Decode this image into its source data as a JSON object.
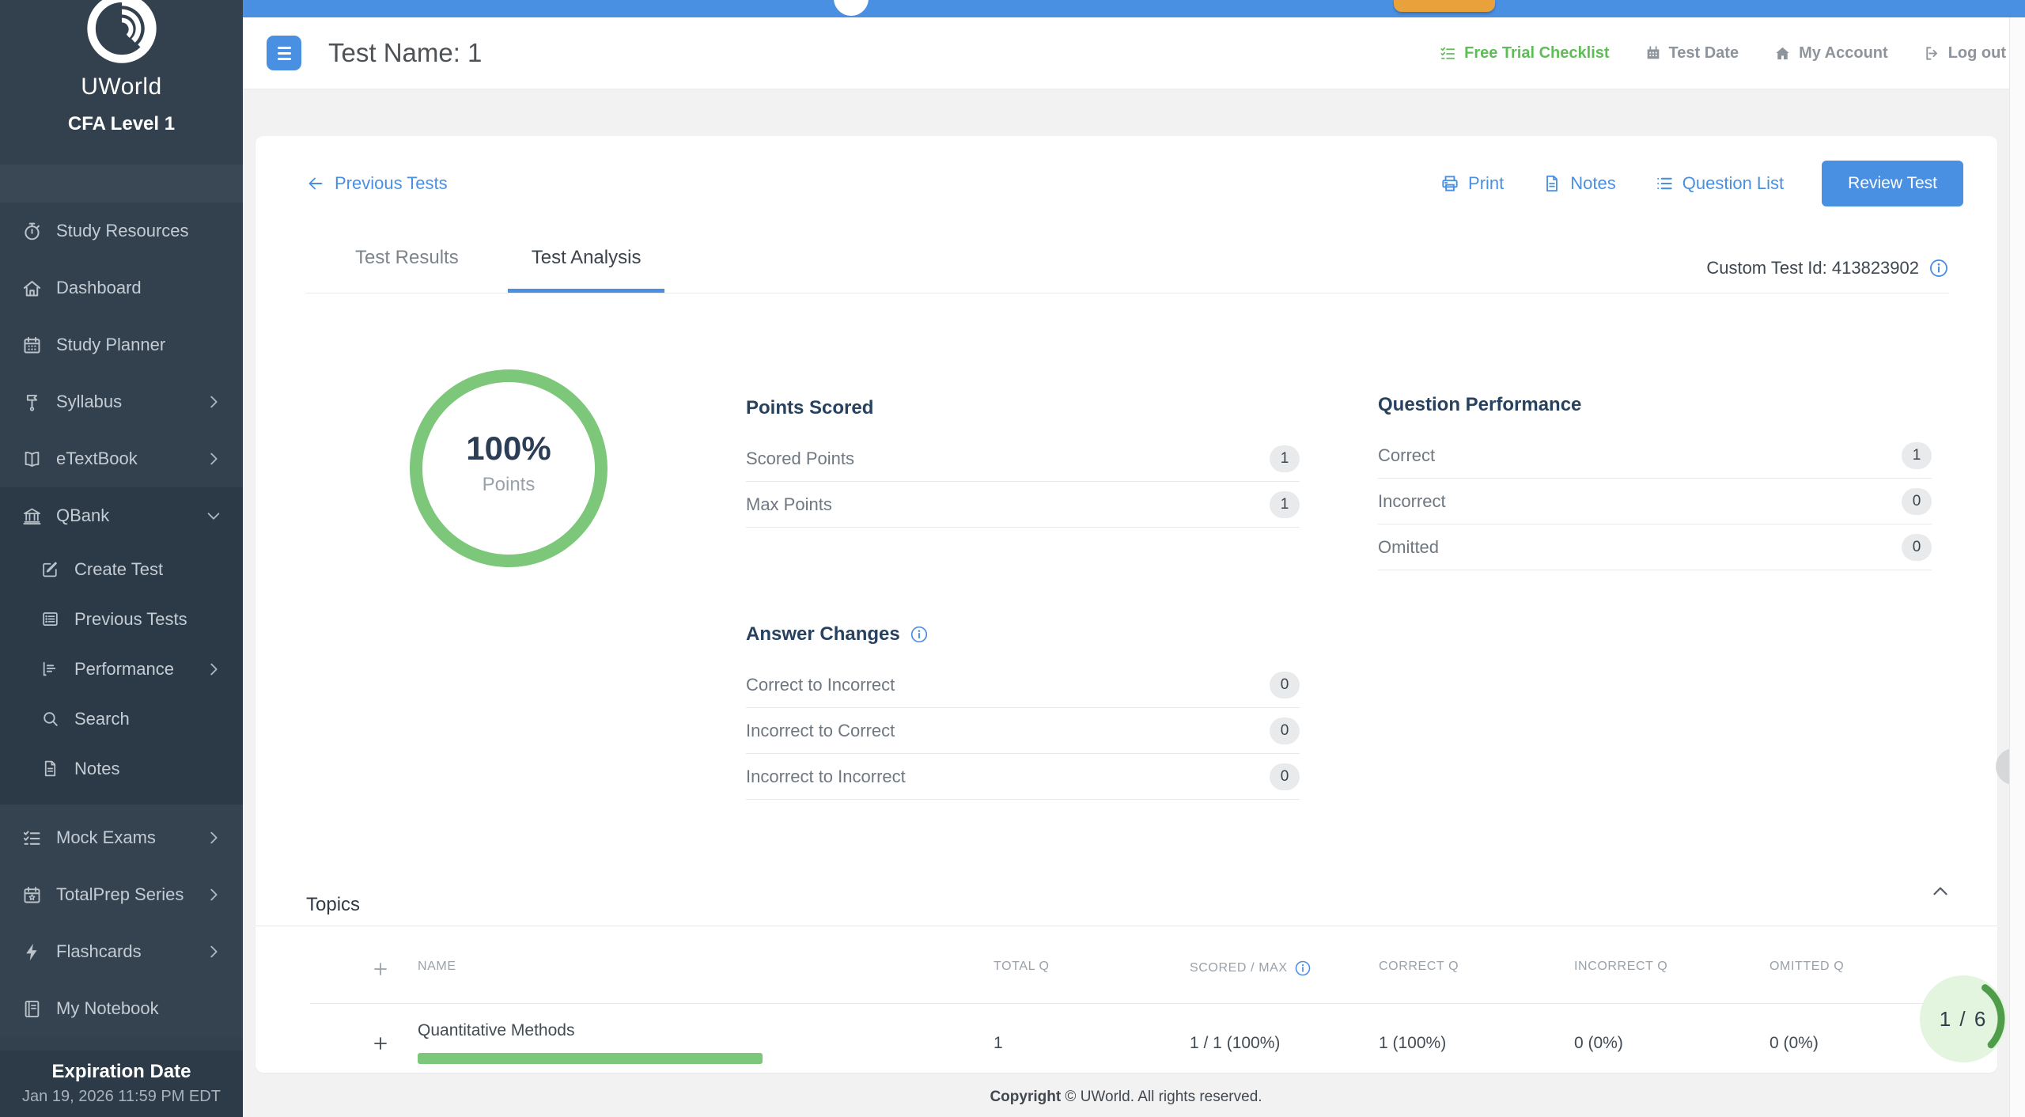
{
  "colors": {
    "accent_blue": "#4a90e2",
    "sidebar_bg": "#33404e",
    "green_ring": "#7cc779",
    "green_link": "#5fbd58",
    "orange_tab": "#e9a23b",
    "heading_navy": "#27415e",
    "page_bg": "#f2f2f3"
  },
  "icons": [
    "uworld-swirl-logo",
    "stopwatch-icon",
    "home-icon",
    "calendar-icon",
    "lectern-icon",
    "open-book-icon",
    "bank-icon",
    "edit-icon",
    "list-box-icon",
    "bar-chart-icon",
    "search-icon",
    "document-icon",
    "checklist-icon",
    "calendar-star-icon",
    "lightning-icon",
    "notebook-icon",
    "hamburger-icon",
    "logout-icon",
    "printer-icon",
    "question-list-icon",
    "info-icon",
    "arrow-left-icon",
    "chevron-right-icon",
    "chevron-down-icon",
    "chevron-up-icon",
    "plus-icon"
  ],
  "sidebar": {
    "brand": {
      "title": "UWorld",
      "subtitle": "CFA Level 1"
    },
    "nav_main": [
      {
        "label": "Study Resources"
      },
      {
        "label": "Dashboard"
      },
      {
        "label": "Study Planner"
      },
      {
        "label": "Syllabus"
      },
      {
        "label": "eTextBook"
      }
    ],
    "qbank": {
      "label": "QBank",
      "children": [
        {
          "label": "Create Test"
        },
        {
          "label": "Previous Tests"
        },
        {
          "label": "Performance"
        },
        {
          "label": "Search"
        },
        {
          "label": "Notes"
        }
      ]
    },
    "nav_secondary": [
      {
        "label": "Mock Exams"
      },
      {
        "label": "TotalPrep Series"
      },
      {
        "label": "Flashcards"
      },
      {
        "label": "My Notebook"
      }
    ],
    "expiration": {
      "title": "Expiration Date",
      "value": "Jan 19, 2026 11:59 PM EDT"
    }
  },
  "header": {
    "page_title": "Test Name: 1",
    "links": [
      {
        "label": "Free Trial Checklist"
      },
      {
        "label": "Test Date"
      },
      {
        "label": "My Account"
      },
      {
        "label": "Log out"
      }
    ]
  },
  "toolbar": {
    "back_link": "Previous Tests",
    "print_label": "Print",
    "notes_label": "Notes",
    "question_list_label": "Question List",
    "review_test_label": "Review Test"
  },
  "tabs": [
    {
      "label": "Test Results",
      "active": false
    },
    {
      "label": "Test Analysis",
      "active": true
    }
  ],
  "custom_test_id": "Custom Test Id: 413823902",
  "score_ring": {
    "percent": "100%",
    "caption": "Points"
  },
  "points_scored": {
    "title": "Points Scored",
    "rows": [
      {
        "label": "Scored Points",
        "value": "1"
      },
      {
        "label": "Max Points",
        "value": "1"
      }
    ]
  },
  "question_performance": {
    "title": "Question Performance",
    "rows": [
      {
        "label": "Correct",
        "value": "1"
      },
      {
        "label": "Incorrect",
        "value": "0"
      },
      {
        "label": "Omitted",
        "value": "0"
      }
    ]
  },
  "answer_changes": {
    "title": "Answer Changes",
    "rows": [
      {
        "label": "Correct to Incorrect",
        "value": "0"
      },
      {
        "label": "Incorrect to Correct",
        "value": "0"
      },
      {
        "label": "Incorrect to Incorrect",
        "value": "0"
      }
    ]
  },
  "topics": {
    "title": "Topics",
    "columns": {
      "name": "NAME",
      "total": "TOTAL Q",
      "scored": "SCORED / MAX",
      "correct": "CORRECT Q",
      "incorrect": "INCORRECT Q",
      "omitted": "OMITTED Q"
    },
    "rows": [
      {
        "name": "Quantitative Methods",
        "total_q": "1",
        "scored_max": "1 / 1 (100%)",
        "correct_q": "1 (100%)",
        "incorrect_q": "0 (0%)",
        "omitted_q": "0 (0%)",
        "progress_percent": 100
      }
    ]
  },
  "footer": {
    "copyright_bold": "Copyright",
    "copyright_rest": " © UWorld. All rights reserved."
  },
  "pager": {
    "label": "1 / 6"
  }
}
